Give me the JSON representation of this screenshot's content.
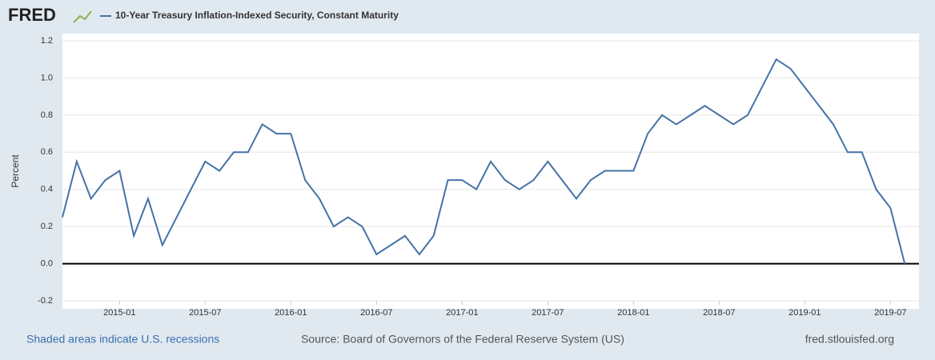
{
  "logo": "FRED",
  "chart_data": {
    "type": "line",
    "y_label": "Percent",
    "x": [
      "2014-09",
      "2014-10",
      "2014-11",
      "2014-12",
      "2015-01",
      "2015-02",
      "2015-03",
      "2015-04",
      "2015-05",
      "2015-06",
      "2015-07",
      "2015-08",
      "2015-09",
      "2015-10",
      "2015-11",
      "2015-12",
      "2016-01",
      "2016-02",
      "2016-03",
      "2016-04",
      "2016-05",
      "2016-06",
      "2016-07",
      "2016-08",
      "2016-09",
      "2016-10",
      "2016-11",
      "2016-12",
      "2017-01",
      "2017-02",
      "2017-03",
      "2017-04",
      "2017-05",
      "2017-06",
      "2017-07",
      "2017-08",
      "2017-09",
      "2017-10",
      "2017-11",
      "2017-12",
      "2018-01",
      "2018-02",
      "2018-03",
      "2018-04",
      "2018-05",
      "2018-06",
      "2018-07",
      "2018-08",
      "2018-09",
      "2018-10",
      "2018-11",
      "2018-12",
      "2019-01",
      "2019-02",
      "2019-03",
      "2019-04",
      "2019-05",
      "2019-06",
      "2019-07",
      "2019-08"
    ],
    "series": [
      {
        "name": "10-Year Treasury Inflation-Indexed Security, Constant Maturity",
        "color": "#4572a7",
        "values": [
          0.25,
          0.55,
          0.35,
          0.45,
          0.5,
          0.15,
          0.35,
          0.1,
          0.25,
          0.4,
          0.55,
          0.5,
          0.6,
          0.6,
          0.75,
          0.7,
          0.7,
          0.45,
          0.35,
          0.2,
          0.25,
          0.2,
          0.05,
          0.1,
          0.15,
          0.05,
          0.15,
          0.45,
          0.45,
          0.4,
          0.55,
          0.45,
          0.4,
          0.45,
          0.55,
          0.45,
          0.35,
          0.45,
          0.5,
          0.5,
          0.5,
          0.7,
          0.8,
          0.75,
          0.8,
          0.85,
          0.8,
          0.75,
          0.8,
          0.95,
          1.1,
          1.05,
          0.95,
          0.85,
          0.75,
          0.6,
          0.6,
          0.4,
          0.3,
          0.0
        ]
      }
    ],
    "xlim": [
      "2014-09",
      "2019-08"
    ],
    "xticks": [
      "2015-01",
      "2015-07",
      "2016-01",
      "2016-07",
      "2017-01",
      "2017-07",
      "2018-01",
      "2018-07",
      "2019-01",
      "2019-07"
    ],
    "ylim": [
      -0.2,
      1.2
    ],
    "yticks": [
      -0.2,
      {
        "value": 0,
        "label": "0.0"
      },
      0.2,
      0.4,
      0.6,
      0.8,
      {
        "value": 1,
        "label": "1.0"
      },
      1.2
    ],
    "grid": true
  },
  "footer": {
    "recessions": "Shaded areas indicate U.S. recessions",
    "source": "Source: Board of Governors of the Federal Reserve System (US)",
    "site": "fred.stlouisfed.org"
  }
}
